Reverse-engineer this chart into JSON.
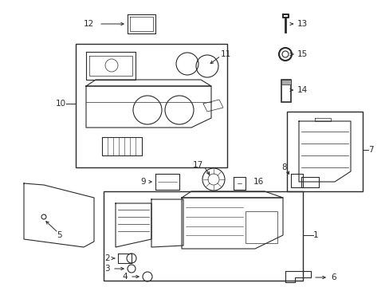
{
  "bg_color": "#ffffff",
  "line_color": "#2a2a2a",
  "fig_width": 4.89,
  "fig_height": 3.6,
  "dpi": 100,
  "label_fontsize": 7.5,
  "arrow_lw": 0.7
}
